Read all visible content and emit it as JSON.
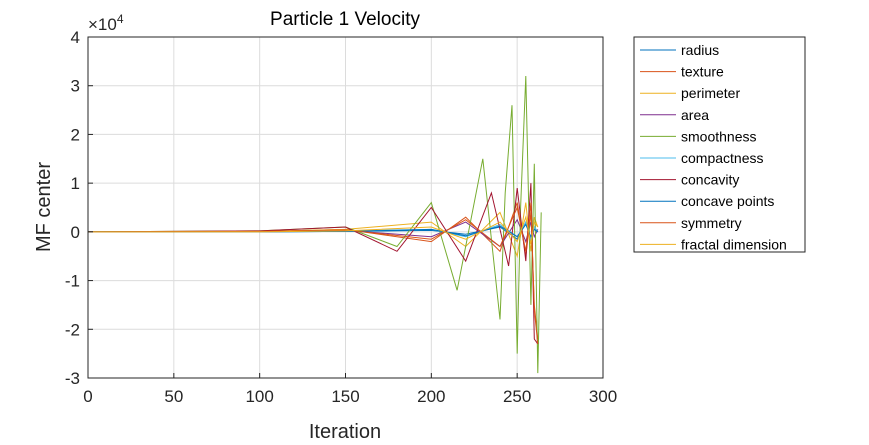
{
  "chart_data": {
    "type": "line",
    "title": "Particle 1 Velocity",
    "xlabel": "Iteration",
    "ylabel": "MF center",
    "y_exponent_label": "×10",
    "y_exponent": "4",
    "xlim": [
      0,
      300
    ],
    "ylim": [
      -3,
      4
    ],
    "xticks": [
      0,
      50,
      100,
      150,
      200,
      250,
      300
    ],
    "yticks": [
      -3,
      -2,
      -1,
      0,
      1,
      2,
      3,
      4
    ],
    "xtick_labels": [
      "0",
      "50",
      "100",
      "150",
      "200",
      "250",
      "300"
    ],
    "ytick_labels": [
      "-3",
      "-2",
      "-1",
      "0",
      "1",
      "2",
      "3",
      "4"
    ],
    "grid": true,
    "legend_position": "outside-top-right",
    "series": [
      {
        "name": "radius",
        "color": "#0072BD",
        "x": [
          0,
          100,
          150,
          200,
          220,
          240,
          250,
          255,
          258,
          260,
          262
        ],
        "values": [
          0,
          0,
          0.01,
          0.03,
          -0.05,
          0.1,
          -0.15,
          0.2,
          -0.2,
          0.1,
          0.0
        ]
      },
      {
        "name": "texture",
        "color": "#D95319",
        "x": [
          0,
          100,
          150,
          200,
          220,
          240,
          250,
          255,
          258,
          260,
          262
        ],
        "values": [
          0,
          0,
          0.05,
          -0.2,
          0.3,
          -0.4,
          0.6,
          -0.5,
          0.4,
          -1.5,
          -2.2
        ]
      },
      {
        "name": "perimeter",
        "color": "#EDB120",
        "x": [
          0,
          100,
          150,
          200,
          220,
          240,
          250,
          255,
          258,
          260,
          262
        ],
        "values": [
          0,
          0.01,
          0.05,
          0.2,
          -0.3,
          0.4,
          -0.5,
          0.6,
          -0.4,
          0.3,
          0.1
        ]
      },
      {
        "name": "area",
        "color": "#7E2F8E",
        "x": [
          0,
          100,
          150,
          200,
          220,
          240,
          250,
          255,
          258,
          260,
          262
        ],
        "values": [
          0,
          0,
          0.03,
          -0.1,
          0.2,
          -0.3,
          0.25,
          -0.2,
          0.2,
          -0.1,
          0.05
        ]
      },
      {
        "name": "smoothness",
        "color": "#77AC30",
        "x": [
          0,
          100,
          150,
          180,
          200,
          215,
          230,
          240,
          243,
          247,
          250,
          252,
          255,
          258,
          260,
          262,
          264
        ],
        "values": [
          0,
          0.02,
          0.1,
          -0.3,
          0.6,
          -1.2,
          1.5,
          -1.8,
          0.8,
          2.6,
          -2.5,
          0.5,
          3.2,
          -1.5,
          1.4,
          -2.9,
          0.4
        ]
      },
      {
        "name": "compactness",
        "color": "#4DBEEE",
        "x": [
          0,
          100,
          150,
          200,
          220,
          240,
          250,
          255,
          258,
          260,
          262
        ],
        "values": [
          0,
          0,
          0.02,
          0.05,
          -0.1,
          0.15,
          -0.1,
          0.2,
          -0.15,
          0.1,
          0.0
        ]
      },
      {
        "name": "concavity",
        "color": "#A2142F",
        "x": [
          0,
          100,
          150,
          180,
          200,
          220,
          235,
          245,
          250,
          255,
          258,
          260,
          262
        ],
        "values": [
          0,
          0.02,
          0.1,
          -0.4,
          0.5,
          -0.6,
          0.8,
          -0.7,
          0.9,
          -0.6,
          1.0,
          -2.2,
          -2.3
        ]
      },
      {
        "name": "concave points",
        "color": "#0072BD",
        "x": [
          0,
          100,
          150,
          200,
          220,
          240,
          250,
          255,
          258,
          260,
          262
        ],
        "values": [
          0,
          0,
          0.01,
          0.05,
          -0.08,
          0.12,
          -0.1,
          0.15,
          -0.1,
          0.05,
          0.0
        ]
      },
      {
        "name": "symmetry",
        "color": "#D95319",
        "x": [
          0,
          100,
          150,
          200,
          220,
          240,
          250,
          255,
          258,
          260,
          262
        ],
        "values": [
          0,
          0.01,
          0.04,
          -0.15,
          0.25,
          -0.3,
          0.5,
          -0.4,
          0.6,
          -1.6,
          -2.3
        ]
      },
      {
        "name": "fractal dimension",
        "color": "#EDB120",
        "x": [
          0,
          100,
          150,
          200,
          220,
          240,
          250,
          255,
          258,
          260,
          262
        ],
        "values": [
          0,
          0,
          0.02,
          0.1,
          -0.15,
          0.2,
          -0.2,
          0.3,
          -0.25,
          0.2,
          0.1
        ]
      }
    ]
  }
}
